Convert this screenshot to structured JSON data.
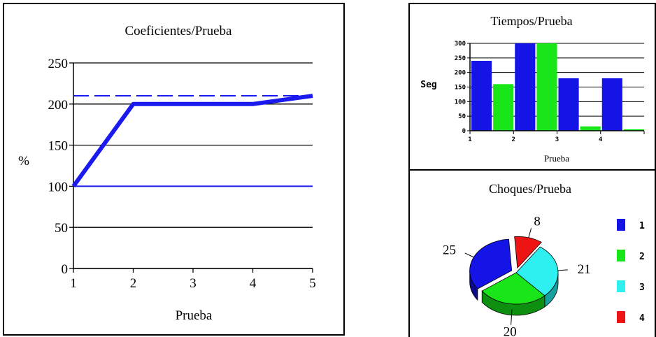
{
  "colors": {
    "blue": "#1414e6",
    "green": "#19e619",
    "cyan": "#2ef0f0",
    "red": "#ee1414",
    "line": "#1a1aee",
    "grid": "#000000"
  },
  "chart_data": [
    {
      "type": "line",
      "title": "Coeficientes/Prueba",
      "xlabel": "Prueba",
      "ylabel": "%",
      "x": [
        1,
        2,
        3,
        4,
        5
      ],
      "ylim": [
        0,
        250
      ],
      "yticks": [
        0,
        50,
        100,
        150,
        200,
        250
      ],
      "grid": true,
      "series": [
        {
          "values": [
            100,
            200,
            200,
            200,
            210
          ],
          "style": "thick-solid"
        },
        {
          "values": [
            210,
            210,
            210,
            210,
            210
          ],
          "style": "dashed"
        },
        {
          "values": [
            100,
            100,
            100,
            100,
            100
          ],
          "style": "thin-solid"
        }
      ]
    },
    {
      "type": "bar",
      "title": "Tiempos/Prueba",
      "xlabel": "Prueba",
      "ylabel": "Seg",
      "categories": [
        "1",
        "2",
        "3",
        "4"
      ],
      "ylim": [
        0,
        300
      ],
      "yticks": [
        0,
        50,
        100,
        150,
        200,
        250,
        300
      ],
      "grid": true,
      "series": [
        {
          "values": [
            240,
            300,
            180,
            180
          ]
        },
        {
          "values": [
            160,
            300,
            15,
            5
          ]
        }
      ]
    },
    {
      "type": "pie",
      "title": "Choques/Prueba",
      "labels": [
        "1",
        "2",
        "3",
        "4"
      ],
      "values": [
        25,
        20,
        21,
        8
      ],
      "legend": "right"
    }
  ]
}
